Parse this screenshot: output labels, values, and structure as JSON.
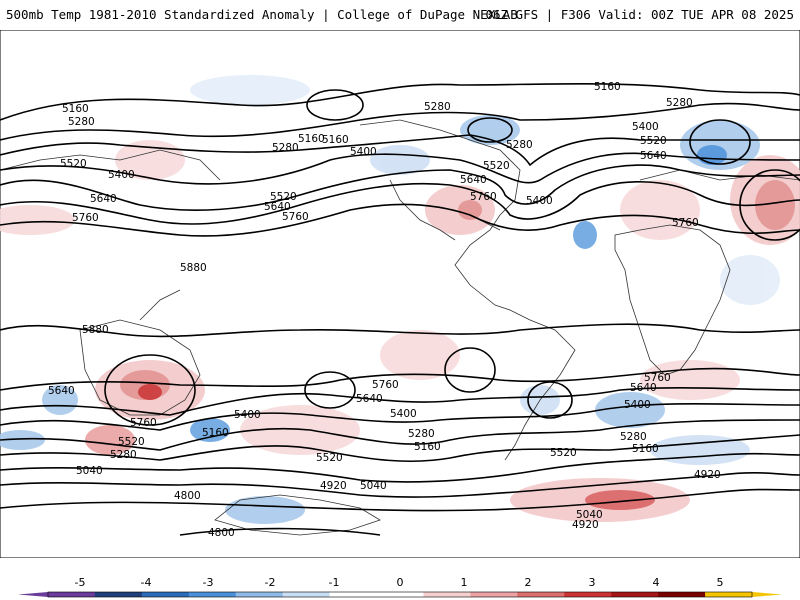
{
  "header": {
    "title": "500mb Temp 1981-2010 Standardized Anomaly | College of DuPage NEXLAB",
    "run_info": "06Z GFS | F306 Valid: 00Z TUE APR 08 2025"
  },
  "map": {
    "contour_labels": [
      "5160",
      "5280",
      "5160",
      "5280",
      "5280",
      "5160",
      "5400",
      "5520",
      "5640",
      "5760",
      "5520",
      "5640",
      "5760",
      "5520",
      "5400",
      "5640",
      "5760",
      "5280",
      "5400",
      "5160",
      "5280",
      "5400",
      "5520",
      "5640",
      "5760",
      "5880",
      "5880",
      "5640",
      "5760",
      "5520",
      "5280",
      "5040",
      "4800",
      "4800",
      "5160",
      "5400",
      "5520",
      "4920",
      "5040",
      "5640",
      "5760",
      "5400",
      "5280",
      "5160",
      "5520",
      "5040",
      "4920",
      "5760",
      "5640",
      "5400",
      "5280",
      "5160",
      "4920"
    ]
  },
  "legend": {
    "ticks": [
      "-5",
      "-4",
      "-3",
      "-2",
      "-1",
      "0",
      "1",
      "2",
      "3",
      "4",
      "5"
    ],
    "colors": [
      "#6a3d9a",
      "#1f3f7a",
      "#2b6cb8",
      "#4a90d9",
      "#8fb9e6",
      "#c9def4",
      "#ffffff",
      "#ffffff",
      "#f6cfcf",
      "#eba3a3",
      "#dd6e6e",
      "#cc3333",
      "#a51616",
      "#7a0000",
      "#f5c400"
    ]
  }
}
